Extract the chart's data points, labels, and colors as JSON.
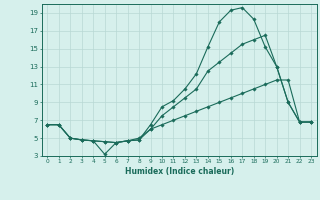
{
  "title": "",
  "xlabel": "Humidex (Indice chaleur)",
  "xlim": [
    -0.5,
    23.5
  ],
  "ylim": [
    3,
    20
  ],
  "xticks": [
    0,
    1,
    2,
    3,
    4,
    5,
    6,
    7,
    8,
    9,
    10,
    11,
    12,
    13,
    14,
    15,
    16,
    17,
    18,
    19,
    20,
    21,
    22,
    23
  ],
  "yticks": [
    3,
    5,
    7,
    9,
    11,
    13,
    15,
    17,
    19
  ],
  "bg_color": "#d6f0ec",
  "grid_color": "#b8d8d4",
  "line_color": "#1a6b5a",
  "line1_x": [
    0,
    1,
    2,
    3,
    4,
    5,
    6,
    7,
    8,
    9,
    10,
    11,
    12,
    13,
    14,
    15,
    16,
    17,
    18,
    19,
    20,
    21,
    22,
    23
  ],
  "line1_y": [
    6.5,
    6.5,
    5.0,
    4.8,
    4.7,
    4.6,
    4.5,
    4.7,
    4.8,
    6.5,
    8.5,
    9.2,
    10.5,
    12.2,
    15.2,
    18.0,
    19.3,
    19.6,
    18.3,
    15.2,
    13.0,
    9.0,
    6.8,
    6.8
  ],
  "line2_x": [
    0,
    1,
    2,
    3,
    4,
    5,
    6,
    7,
    8,
    9,
    10,
    11,
    12,
    13,
    14,
    15,
    16,
    17,
    18,
    19,
    20,
    21,
    22,
    23
  ],
  "line2_y": [
    6.5,
    6.5,
    5.0,
    4.8,
    4.7,
    3.2,
    4.5,
    4.7,
    4.8,
    6.0,
    7.5,
    8.5,
    9.5,
    10.5,
    12.5,
    13.5,
    14.5,
    15.5,
    16.0,
    16.5,
    13.0,
    9.0,
    6.8,
    6.8
  ],
  "line3_x": [
    0,
    1,
    2,
    3,
    4,
    5,
    6,
    7,
    8,
    9,
    10,
    11,
    12,
    13,
    14,
    15,
    16,
    17,
    18,
    19,
    20,
    21,
    22,
    23
  ],
  "line3_y": [
    6.5,
    6.5,
    5.0,
    4.8,
    4.7,
    4.6,
    4.5,
    4.7,
    5.0,
    6.0,
    6.5,
    7.0,
    7.5,
    8.0,
    8.5,
    9.0,
    9.5,
    10.0,
    10.5,
    11.0,
    11.5,
    11.5,
    6.8,
    6.8
  ]
}
